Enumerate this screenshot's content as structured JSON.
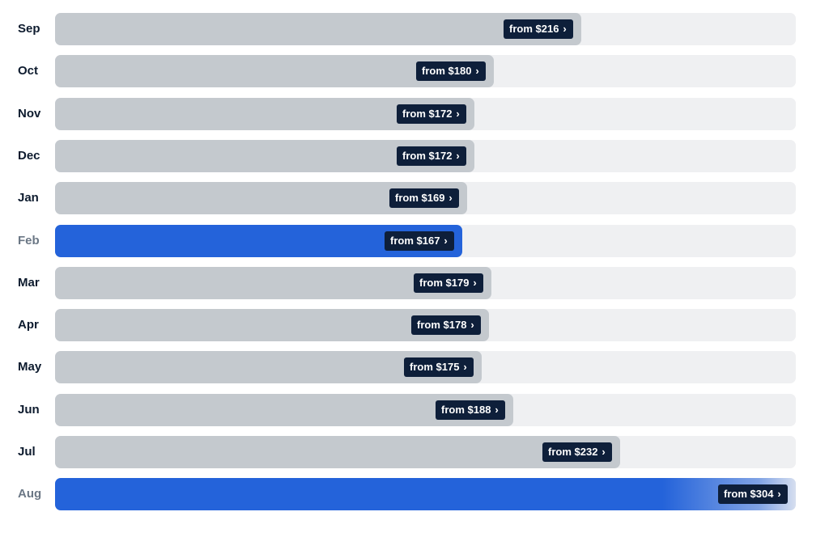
{
  "chart_data": {
    "type": "bar",
    "orientation": "horizontal",
    "categories": [
      "Sep",
      "Oct",
      "Nov",
      "Dec",
      "Jan",
      "Feb",
      "Mar",
      "Apr",
      "May",
      "Jun",
      "Jul",
      "Aug"
    ],
    "values": [
      216,
      180,
      172,
      172,
      169,
      167,
      179,
      178,
      175,
      188,
      232,
      304
    ],
    "labels": [
      "from $216",
      "from $180",
      "from $172",
      "from $172",
      "from $169",
      "from $167",
      "from $179",
      "from $178",
      "from $175",
      "from $188",
      "from $232",
      "from $304"
    ],
    "highlighted": [
      "Feb",
      "Aug"
    ],
    "title": "",
    "xlabel": "",
    "ylabel": "",
    "grid": false,
    "colors": {
      "bar": "#c4c9ce",
      "track": "#eff0f2",
      "highlight": "#2463da",
      "tag_bg": "#0e1f3a",
      "tag_text": "#ffffff",
      "label": "#0d1b2e",
      "label_muted": "#6b7785"
    }
  },
  "icons": {
    "tag_arrow": "chevron-right-icon"
  }
}
